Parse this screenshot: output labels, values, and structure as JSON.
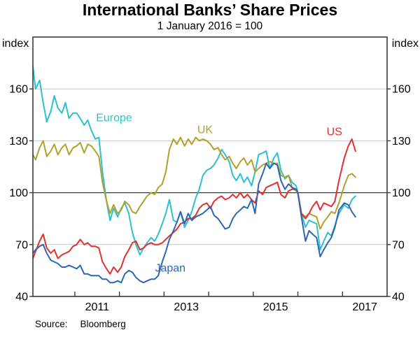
{
  "header": {
    "title": "International Banks’ Share Prices",
    "subtitle": "1 January 2016 = 100"
  },
  "axis": {
    "left_unit": "index",
    "right_unit": "index"
  },
  "source": {
    "label": "Source:",
    "value": "Bloomberg"
  },
  "colors": {
    "frame": "#3a3a3a",
    "grid": "#c9c9c9",
    "baseline": "#3a3a3a",
    "text": "#000000",
    "background": "#ffffff"
  },
  "chart_data": {
    "type": "line",
    "title": "International Banks’ Share Prices",
    "subtitle": "1 January 2016 = 100",
    "ylabel": "index",
    "ylim": [
      40,
      190
    ],
    "yticks": [
      40,
      70,
      100,
      130,
      160
    ],
    "baseline": 100,
    "grid": "horizontal",
    "xlim": [
      2010.06,
      2018.0
    ],
    "xticks_years": [
      2011,
      2012,
      2013,
      2014,
      2015,
      2016,
      2017
    ],
    "xtick_labels": [
      {
        "label": "2011",
        "x": 2011.5
      },
      {
        "label": "2013",
        "x": 2013.5
      },
      {
        "label": "2015",
        "x": 2015.5
      },
      {
        "label": "2017",
        "x": 2017.5
      }
    ],
    "x": [
      2010.06,
      2010.12,
      2010.21,
      2010.29,
      2010.37,
      2010.46,
      2010.54,
      2010.62,
      2010.71,
      2010.79,
      2010.87,
      2010.96,
      2011.04,
      2011.12,
      2011.21,
      2011.29,
      2011.37,
      2011.46,
      2011.54,
      2011.62,
      2011.71,
      2011.79,
      2011.87,
      2011.96,
      2012.04,
      2012.12,
      2012.21,
      2012.29,
      2012.37,
      2012.46,
      2012.54,
      2012.62,
      2012.71,
      2012.79,
      2012.87,
      2012.96,
      2013.04,
      2013.12,
      2013.21,
      2013.29,
      2013.37,
      2013.46,
      2013.54,
      2013.62,
      2013.71,
      2013.79,
      2013.87,
      2013.96,
      2014.04,
      2014.12,
      2014.21,
      2014.29,
      2014.37,
      2014.46,
      2014.54,
      2014.62,
      2014.71,
      2014.79,
      2014.87,
      2014.96,
      2015.04,
      2015.12,
      2015.21,
      2015.29,
      2015.37,
      2015.46,
      2015.54,
      2015.62,
      2015.71,
      2015.79,
      2015.87,
      2015.96,
      2016.0,
      2016.08,
      2016.17,
      2016.25,
      2016.33,
      2016.42,
      2016.5,
      2016.58,
      2016.67,
      2016.75,
      2016.83,
      2016.92,
      2017.04,
      2017.13,
      2017.21,
      2017.29
    ],
    "series": [
      {
        "name": "Europe",
        "color": "#2cc1ce",
        "label": {
          "text": "Europe",
          "x": 2011.88,
          "y": 143.5
        },
        "values": [
          173,
          160,
          165,
          152,
          141,
          147,
          156,
          149,
          146,
          152,
          143,
          146,
          146,
          143,
          139,
          142,
          136,
          131,
          132,
          112,
          95,
          84,
          91,
          86,
          91,
          94,
          88,
          77,
          70,
          64,
          68,
          71,
          74,
          72,
          76,
          82,
          88,
          96,
          84,
          83,
          89,
          80,
          84,
          89,
          97,
          102,
          110,
          113,
          114,
          116,
          120,
          125,
          122,
          118,
          110,
          107,
          111,
          106,
          109,
          104,
          112,
          122,
          123,
          124,
          114,
          120,
          123,
          113,
          108,
          110,
          106,
          104,
          100,
          88,
          80,
          84,
          83,
          82,
          67,
          72,
          77,
          75,
          81,
          88,
          93,
          91,
          96,
          98
        ]
      },
      {
        "name": "UK",
        "color": "#b3a02c",
        "label": {
          "text": "UK",
          "x": 2013.92,
          "y": 136.6
        },
        "values": [
          122,
          119,
          126,
          130,
          121,
          124,
          128,
          122,
          126,
          128,
          122,
          126,
          127,
          129,
          123,
          128,
          127,
          124,
          121,
          106,
          95,
          88,
          93,
          88,
          90,
          95,
          93,
          89,
          88,
          92,
          95,
          98,
          100,
          99,
          103,
          105,
          112,
          125,
          131,
          128,
          132,
          127,
          131,
          128,
          132,
          130,
          131,
          130,
          128,
          125,
          126,
          122,
          119,
          121,
          117,
          114,
          118,
          120,
          116,
          119,
          112,
          114,
          116,
          117,
          118,
          117,
          117,
          110,
          109,
          110,
          103,
          101,
          100,
          88,
          86,
          88,
          87,
          86,
          79,
          83,
          86,
          89,
          88,
          94,
          104,
          110,
          111,
          109
        ]
      },
      {
        "name": "US",
        "color": "#e03131",
        "label": {
          "text": "US",
          "x": 2016.82,
          "y": 135.4
        },
        "values": [
          62,
          66,
          72,
          76,
          68,
          65,
          67,
          62,
          64,
          65,
          66,
          69,
          70,
          73,
          70,
          71,
          69,
          69,
          68,
          60,
          56,
          53,
          57,
          54,
          57,
          63,
          67,
          71,
          72,
          67,
          68,
          70,
          71,
          70,
          70,
          71,
          73,
          75,
          77,
          79,
          82,
          83,
          85,
          85,
          87,
          91,
          93,
          94,
          91,
          95,
          97,
          98,
          96,
          97,
          99,
          97,
          100,
          97,
          99,
          96,
          94,
          101,
          99,
          103,
          104,
          105,
          106,
          99,
          97,
          101,
          102,
          102,
          100,
          88,
          85,
          88,
          92,
          95,
          90,
          94,
          93,
          92,
          95,
          107,
          120,
          127,
          131,
          124
        ]
      },
      {
        "name": "Japan",
        "color": "#2e67b1",
        "label": {
          "text": "Japan",
          "x": 2013.14,
          "y": 56.6
        },
        "values": [
          65,
          67,
          69,
          70,
          65,
          61,
          60,
          59,
          57,
          57,
          58,
          57,
          56,
          58,
          53,
          53,
          52,
          52,
          52,
          50,
          50,
          48,
          48,
          49,
          48,
          53,
          55,
          54,
          51,
          49,
          48,
          49,
          50,
          50,
          52,
          60,
          66,
          73,
          78,
          83,
          89,
          82,
          88,
          84,
          86,
          87,
          88,
          90,
          92,
          87,
          85,
          82,
          79,
          80,
          85,
          88,
          90,
          92,
          91,
          96,
          88,
          105,
          111,
          117,
          114,
          117,
          116,
          107,
          102,
          105,
          103,
          102,
          100,
          86,
          72,
          78,
          76,
          74,
          63,
          67,
          71,
          74,
          80,
          90,
          94,
          93,
          89,
          86
        ]
      }
    ]
  }
}
